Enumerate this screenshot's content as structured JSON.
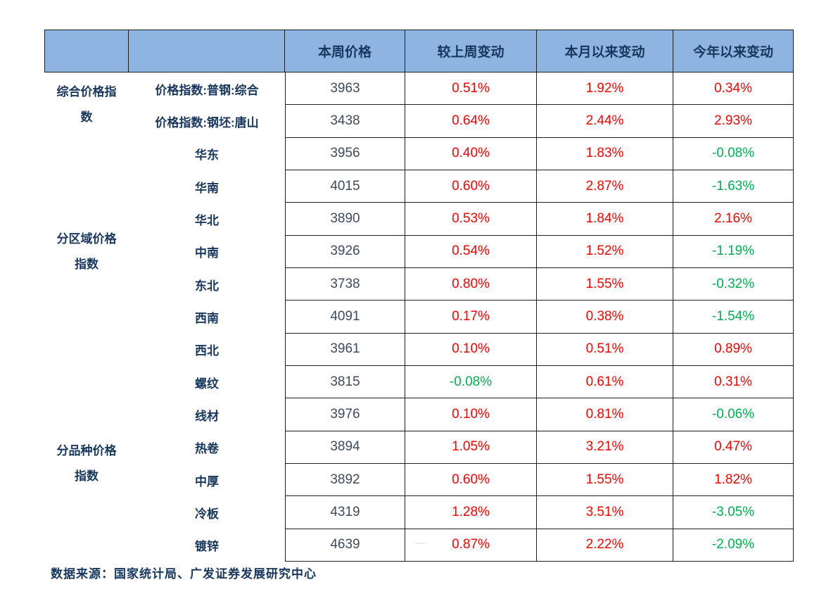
{
  "chart_data": {
    "type": "table",
    "columns": [
      "本周价格",
      "较上周变动",
      "本月以来变动",
      "今年以来变动"
    ],
    "groups": [
      {
        "label": "综合价格指数",
        "rows": [
          {
            "label": "价格指数:普钢:综合",
            "price": "3963",
            "wow": "0.51%",
            "mtd": "1.92%",
            "ytd": "0.34%"
          },
          {
            "label": "价格指数:钢坯:唐山",
            "price": "3438",
            "wow": "0.64%",
            "mtd": "2.44%",
            "ytd": "2.93%"
          }
        ]
      },
      {
        "label": "分区域价格指数",
        "rows": [
          {
            "label": "华东",
            "price": "3956",
            "wow": "0.40%",
            "mtd": "1.83%",
            "ytd": "-0.08%"
          },
          {
            "label": "华南",
            "price": "4015",
            "wow": "0.60%",
            "mtd": "2.87%",
            "ytd": "-1.63%"
          },
          {
            "label": "华北",
            "price": "3890",
            "wow": "0.53%",
            "mtd": "1.84%",
            "ytd": "2.16%"
          },
          {
            "label": "中南",
            "price": "3926",
            "wow": "0.54%",
            "mtd": "1.52%",
            "ytd": "-1.19%"
          },
          {
            "label": "东北",
            "price": "3738",
            "wow": "0.80%",
            "mtd": "1.55%",
            "ytd": "-0.32%"
          },
          {
            "label": "西南",
            "price": "4091",
            "wow": "0.17%",
            "mtd": "0.38%",
            "ytd": "-1.54%"
          },
          {
            "label": "西北",
            "price": "3961",
            "wow": "0.10%",
            "mtd": "0.51%",
            "ytd": "0.89%"
          }
        ]
      },
      {
        "label": "分品种价格指数",
        "rows": [
          {
            "label": "螺纹",
            "price": "3815",
            "wow": "-0.08%",
            "mtd": "0.61%",
            "ytd": "0.31%"
          },
          {
            "label": "线材",
            "price": "3976",
            "wow": "0.10%",
            "mtd": "0.81%",
            "ytd": "-0.06%"
          },
          {
            "label": "热卷",
            "price": "3894",
            "wow": "1.05%",
            "mtd": "3.21%",
            "ytd": "0.47%"
          },
          {
            "label": "中厚",
            "price": "3892",
            "wow": "0.60%",
            "mtd": "1.55%",
            "ytd": "1.82%"
          },
          {
            "label": "冷板",
            "price": "4319",
            "wow": "1.28%",
            "mtd": "3.51%",
            "ytd": "-3.05%"
          },
          {
            "label": "镀锌",
            "price": "4639",
            "wow": "0.87%",
            "mtd": "2.22%",
            "ytd": "-2.09%"
          }
        ]
      }
    ],
    "source": "数据来源：国家统计局、广发证券发展研究中心",
    "legend_note": "positive values shown red, negative values shown green",
    "artifact_dash": "—"
  },
  "colors": {
    "header_bg": "#8EB4E2",
    "header_text": "#17375E",
    "number_text": "#3E4B5D",
    "positive": "#FE0000",
    "negative": "#00B050",
    "border": "#1F1F1F"
  }
}
